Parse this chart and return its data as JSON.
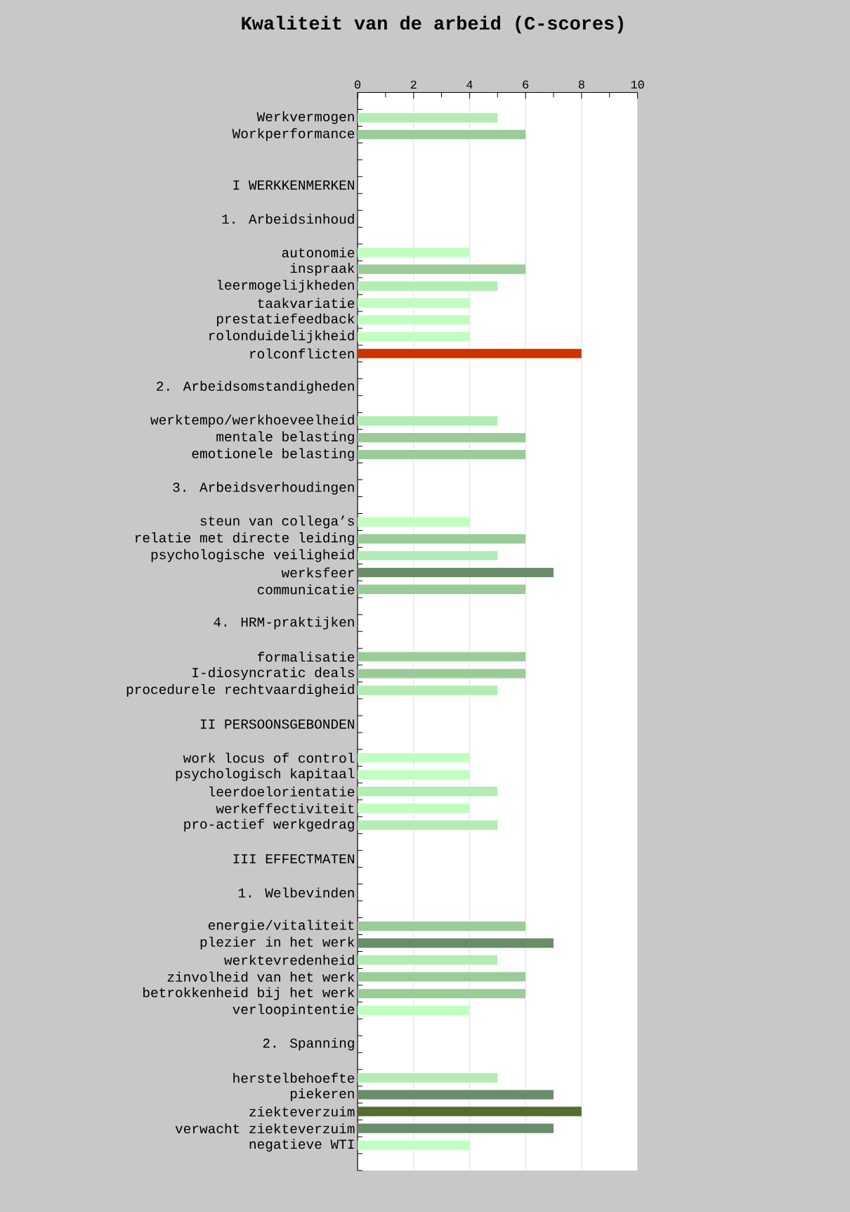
{
  "chart_data": {
    "type": "bar",
    "orientation": "horizontal",
    "title": "Kwaliteit van de arbeid (C-scores)",
    "categories": [
      null,
      "Werkvermogen",
      "Workperformance",
      null,
      null,
      "I WERKKENMERKEN",
      null,
      "1. Arbeidsinhoud",
      null,
      "autonomie",
      "inspraak",
      "leermogelijkheden",
      "taakvariatie",
      "prestatiefeedback",
      "rolonduidelijkheid",
      "rolconflicten",
      null,
      "2. Arbeidsomstandigheden",
      null,
      "werktempo/werkhoeveelheid",
      "mentale belasting",
      "emotionele belasting",
      null,
      "3. Arbeidsverhoudingen",
      null,
      "steun van collega’s",
      "relatie met directe leiding",
      "psychologische veiligheid",
      "werksfeer",
      "communicatie",
      null,
      "4. HRM-praktijken",
      null,
      "formalisatie",
      "I-diosyncratic deals",
      "procedurele rechtvaardigheid",
      null,
      "II PERSOONSGEBONDEN",
      null,
      "work locus of control",
      "psychologisch kapitaal",
      "leerdoelorientatie",
      "werkeffectiviteit",
      "pro-actief werkgedrag",
      null,
      "III EFFECTMATEN",
      null,
      "1. Welbevinden",
      null,
      "energie/vitaliteit",
      "plezier in het werk",
      "werktevredenheid",
      "zinvolheid van het werk",
      "betrokkenheid bij het werk",
      "verloopintentie",
      null,
      "2. Spanning",
      null,
      "herstelbehoefte",
      "piekeren",
      "ziekteverzuim",
      "verwacht ziekteverzuim",
      "negatieve WTI",
      null
    ],
    "values": [
      null,
      5,
      6,
      null,
      null,
      null,
      null,
      null,
      null,
      4,
      6,
      5,
      4,
      4,
      4,
      8,
      null,
      null,
      null,
      5,
      6,
      6,
      null,
      null,
      null,
      4,
      6,
      5,
      7,
      6,
      null,
      null,
      null,
      6,
      6,
      5,
      null,
      null,
      null,
      4,
      4,
      5,
      4,
      5,
      null,
      null,
      null,
      null,
      null,
      6,
      7,
      5,
      6,
      6,
      4,
      null,
      null,
      null,
      5,
      7,
      8,
      7,
      4,
      null
    ],
    "colors": [
      null,
      "#b3edb3",
      "#9acc9a",
      null,
      null,
      null,
      null,
      null,
      null,
      "#c0ffc0",
      "#9acc9a",
      "#b3edb3",
      "#c0ffc0",
      "#c0ffc0",
      "#c0ffc0",
      "#cc3300",
      null,
      null,
      null,
      "#b3edb3",
      "#9acc9a",
      "#9acc9a",
      null,
      null,
      null,
      "#c0ffc0",
      "#9acc9a",
      "#b3edb3",
      "#6a8c6a",
      "#9acc9a",
      null,
      null,
      null,
      "#9acc9a",
      "#9acc9a",
      "#b3edb3",
      null,
      null,
      null,
      "#c0ffc0",
      "#c0ffc0",
      "#b3edb3",
      "#c0ffc0",
      "#b3edb3",
      null,
      null,
      null,
      null,
      null,
      "#9acc9a",
      "#6a8c6a",
      "#b3edb3",
      "#9acc9a",
      "#9acc9a",
      "#c0ffc0",
      null,
      null,
      null,
      "#b3edb3",
      "#6a8c6a",
      "#556b2f",
      "#6a8c6a",
      "#c0ffc0",
      null
    ],
    "xlim": [
      0,
      10
    ],
    "xticks": [
      0,
      2,
      4,
      6,
      8,
      10
    ],
    "grid": "x"
  }
}
